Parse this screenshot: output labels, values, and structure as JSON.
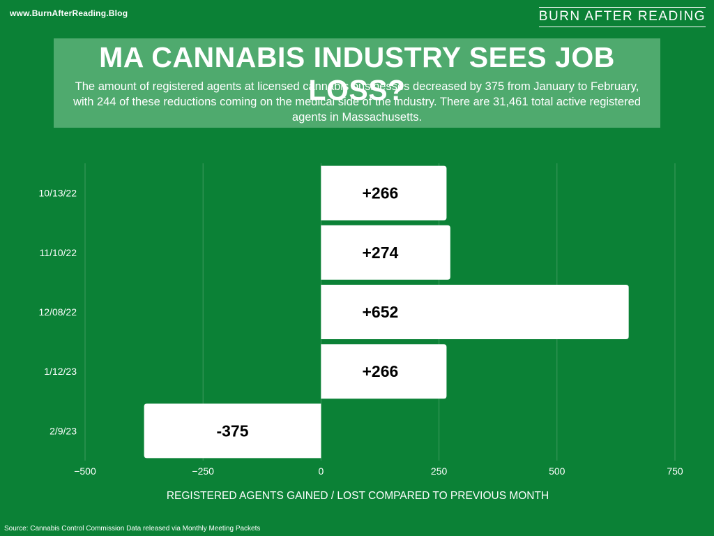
{
  "header": {
    "site_url": "www.BurnAfterReading.Blog",
    "brand": "BURN AFTER READING"
  },
  "title": "MA CANNABIS INDUSTRY SEES JOB LOSS?",
  "subtitle": "The amount of registered agents at licensed cannabis businesses decreased by 375 from January to February, with 244 of these reductions coming on the medical side of the industry.  There are 31,461 total active registered agents in Massachusetts.",
  "source": "Source: Cannabis Control Commission Data released via Monthly Meeting Packets",
  "colors": {
    "background": "#0b8136",
    "title_box": "#4faa6e",
    "bar": "#ffffff",
    "bar_label": "#000000",
    "grid": "#3f9a5e"
  },
  "chart_data": {
    "type": "bar",
    "orientation": "horizontal",
    "categories": [
      "10/13/22",
      "11/10/22",
      "12/08/22",
      "1/12/23",
      "2/9/23"
    ],
    "values": [
      266,
      274,
      652,
      266,
      -375
    ],
    "data_labels": [
      "+266",
      "+274",
      "+652",
      "+266",
      "-375"
    ],
    "xlabel": "REGISTERED AGENTS GAINED / LOST COMPARED TO PREVIOUS MONTH",
    "ylabel": "",
    "xlim": [
      -500,
      750
    ],
    "xticks": [
      -500,
      -250,
      0,
      250,
      500,
      750
    ],
    "xtick_labels": [
      "−500",
      "−250",
      "0",
      "250",
      "500",
      "750"
    ],
    "grid": true
  }
}
